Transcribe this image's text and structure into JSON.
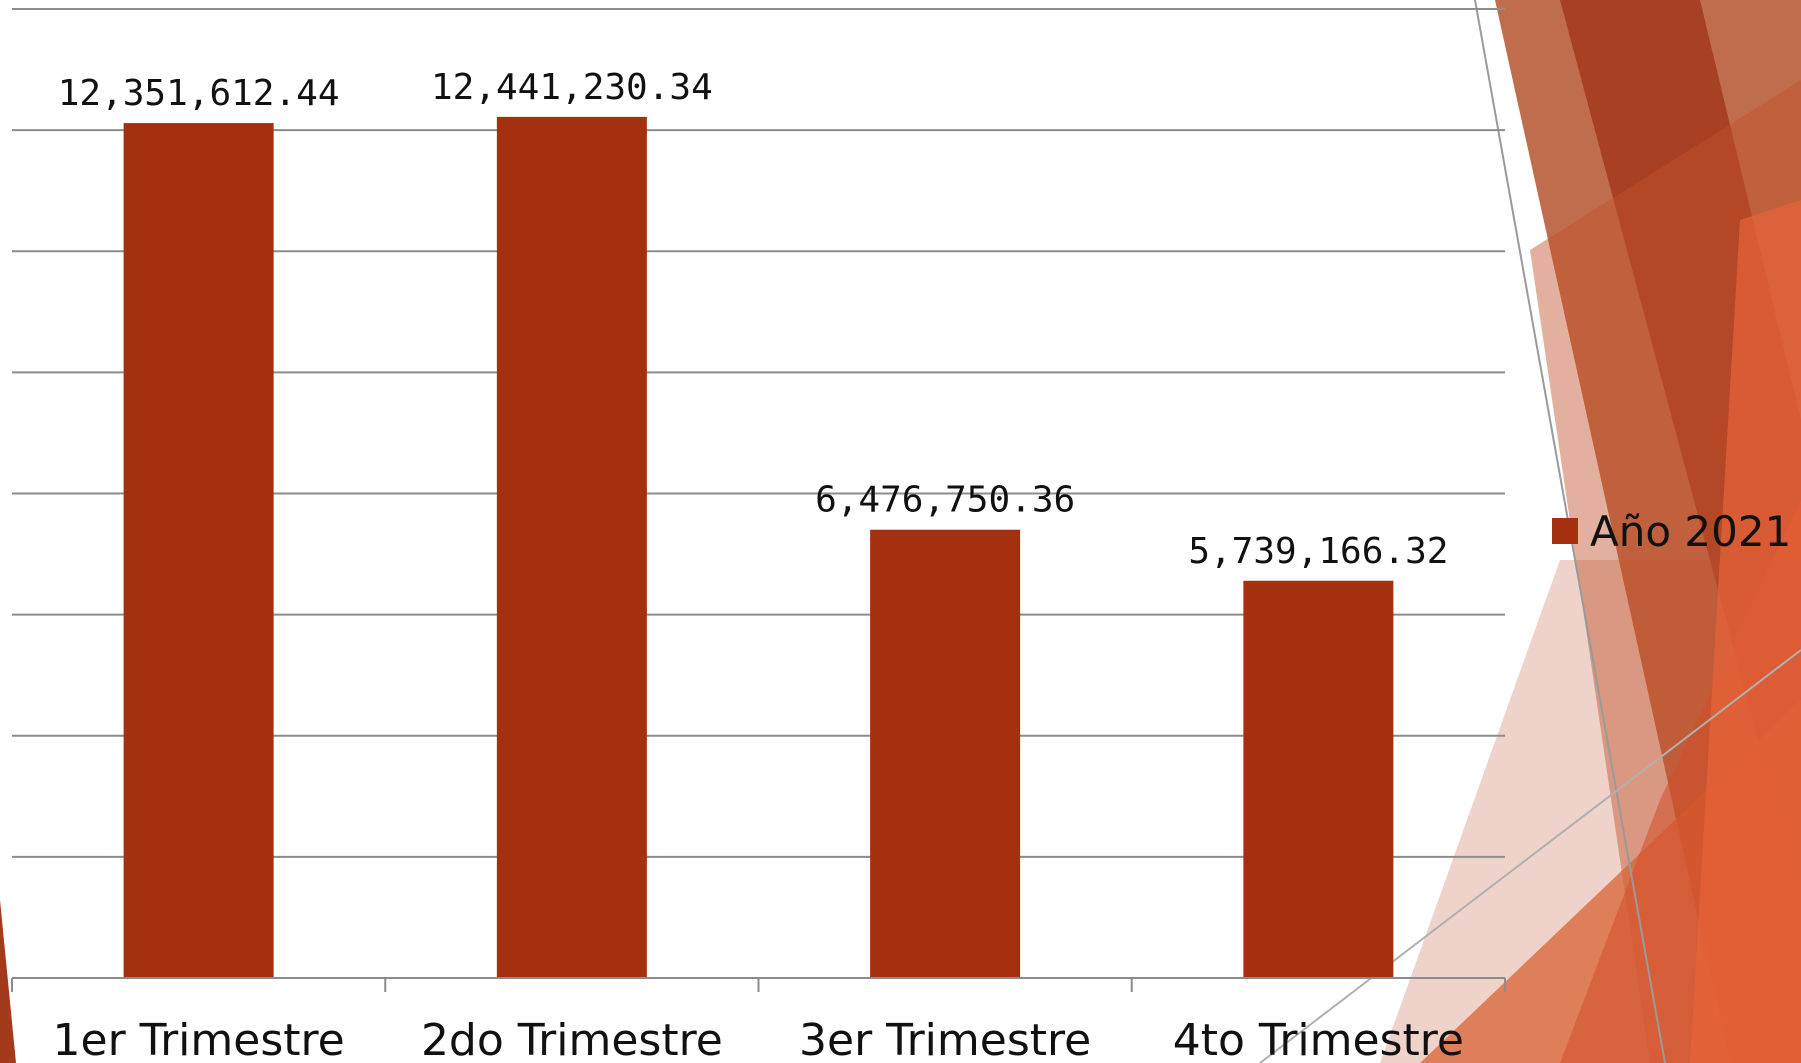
{
  "colors": {
    "bar": "#A5300F",
    "gridline": "#8c8c8c",
    "background": "#ffffff"
  },
  "chart_data": {
    "type": "bar",
    "categories": [
      "1er Trimestre",
      "2do Trimestre",
      "3er Trimestre",
      "4to Trimestre"
    ],
    "series": [
      {
        "name": "Año 2021",
        "values": [
          12351612.44,
          12441230.34,
          6476750.36,
          5739166.32
        ],
        "labels": [
          "12,351,612.44",
          "12,441,230.34",
          "6,476,750.36",
          "5,739,166.32"
        ]
      }
    ],
    "ylim": [
      0,
      14000000
    ],
    "grid": true,
    "legend": "right"
  }
}
